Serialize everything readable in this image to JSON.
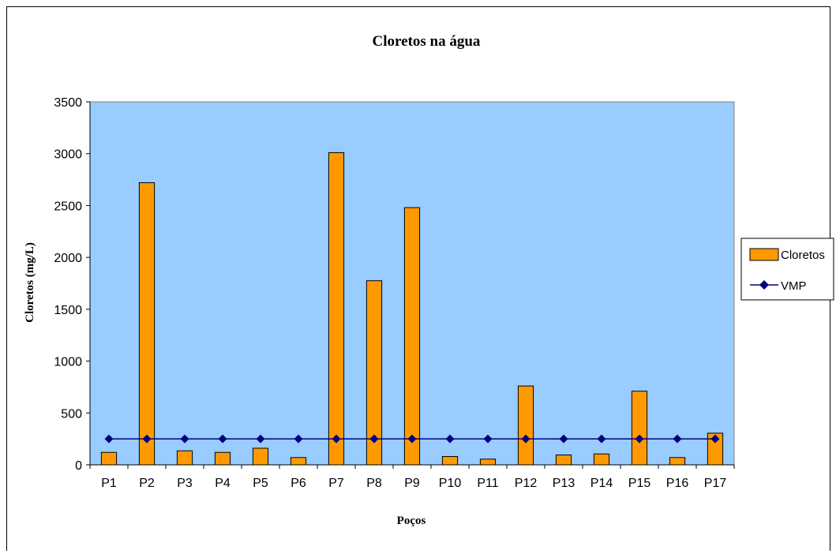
{
  "chart_data": {
    "type": "bar",
    "title": "Cloretos na água",
    "xlabel": "Poços",
    "ylabel": "Cloretos (mg/L)",
    "ylim": [
      0,
      3500
    ],
    "yticks": [
      0,
      500,
      1000,
      1500,
      2000,
      2500,
      3000,
      3500
    ],
    "categories": [
      "P1",
      "P2",
      "P3",
      "P4",
      "P5",
      "P6",
      "P7",
      "P8",
      "P9",
      "P10",
      "P11",
      "P12",
      "P13",
      "P14",
      "P15",
      "P16",
      "P17"
    ],
    "series": [
      {
        "name": "Cloretos",
        "type": "bar",
        "color": "#FF9900",
        "values": [
          120,
          2720,
          135,
          120,
          160,
          70,
          3010,
          1775,
          2480,
          80,
          55,
          760,
          95,
          105,
          710,
          70,
          305
        ]
      },
      {
        "name": "VMP",
        "type": "line",
        "color": "#000080",
        "marker": "diamond",
        "values": [
          250,
          250,
          250,
          250,
          250,
          250,
          250,
          250,
          250,
          250,
          250,
          250,
          250,
          250,
          250,
          250,
          250
        ]
      }
    ],
    "plot_background": "#99CCFF",
    "grid": false,
    "legend_position": "right"
  }
}
